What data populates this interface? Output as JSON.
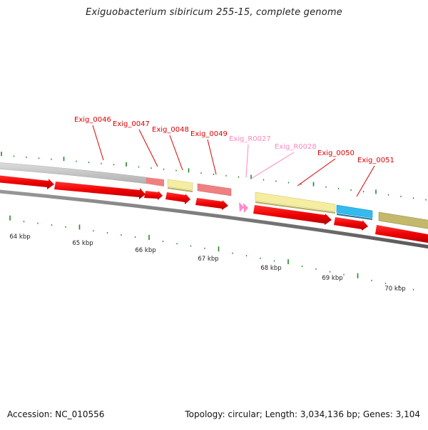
{
  "title": "Exiguobacterium sibiricum 255-15, complete genome",
  "footer": {
    "accession": "Accession: NC_010556",
    "summary": "Topology: circular; Length: 3,034,136 bp; Genes: 3,104"
  },
  "ruler": {
    "labels": [
      {
        "text": "64 kbp",
        "kbp": 64
      },
      {
        "text": "65 kbp",
        "kbp": 65
      },
      {
        "text": "66 kbp",
        "kbp": 66
      },
      {
        "text": "67 kbp",
        "kbp": 67
      },
      {
        "text": "68 kbp",
        "kbp": 68
      },
      {
        "text": "69 kbp",
        "kbp": 69
      },
      {
        "text": "70 kbp",
        "kbp": 70
      }
    ]
  },
  "features": [
    {
      "name": "Exig_0046",
      "type": "CDS",
      "strand": "+",
      "color": "#d8d8d8"
    },
    {
      "name": "Exig_0047",
      "type": "CDS",
      "strand": "+",
      "color": "#f08080"
    },
    {
      "name": "Exig_0048",
      "type": "CDS",
      "strand": "+",
      "color": "#f5eea0"
    },
    {
      "name": "Exig_0049",
      "type": "CDS",
      "strand": "+",
      "color": "#f08080"
    },
    {
      "name": "Exig_R0027",
      "type": "tRNA",
      "strand": "+",
      "color": "#ff99cc"
    },
    {
      "name": "Exig_R0028",
      "type": "tRNA",
      "strand": "+",
      "color": "#ff99cc"
    },
    {
      "name": "Exig_0050",
      "type": "CDS",
      "strand": "+",
      "color": "#f5eea0"
    },
    {
      "name": "Exig_0051",
      "type": "CDS",
      "strand": "+",
      "color": "#33bbee"
    }
  ],
  "colors": {
    "gene_label": "#dd0000",
    "rna_label": "#ff88bb",
    "forward_arrow": "#ee0000",
    "backbone": "#777777",
    "tick": "#228822"
  }
}
